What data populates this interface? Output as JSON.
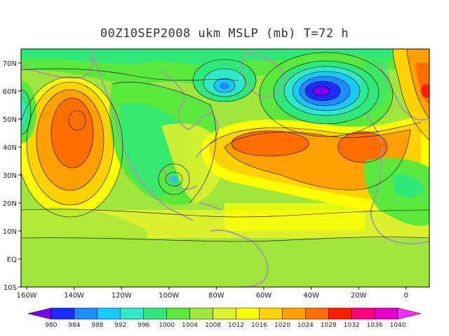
{
  "title": "00Z10SEP2008 ukm MSLP (mb) T=72 h",
  "lat_labels": [
    "70N",
    "60N",
    "50N",
    "40N",
    "30N",
    "20N",
    "10N",
    "EQ",
    "10S"
  ],
  "lon_labels": [
    "160W",
    "140W",
    "120W",
    "100W",
    "80W",
    "60W",
    "40W",
    "20W",
    "0"
  ],
  "colorbar": {
    "labels": [
      "980",
      "984",
      "988",
      "992",
      "996",
      "1000",
      "1004",
      "1008",
      "1012",
      "1016",
      "1020",
      "1024",
      "1028",
      "1032",
      "1036",
      "1040"
    ],
    "colors": [
      "#7a00e8",
      "#1e2dff",
      "#1e8cff",
      "#18c8ff",
      "#2ee8c8",
      "#2ee87a",
      "#5ae83c",
      "#a0e63c",
      "#dcf02e",
      "#ffff00",
      "#ffd200",
      "#ffa000",
      "#ff6e00",
      "#ff1e00",
      "#ff0080",
      "#e600c8",
      "#ff28ff"
    ]
  },
  "colors": {
    "land_outline": "#a0a0a0",
    "contour": "#000000",
    "background": "#ffffff"
  },
  "features": {
    "highs": [
      {
        "name": "north-pacific-high",
        "lon": -137,
        "lat": 42,
        "value": 1028
      },
      {
        "name": "azores-high-west",
        "lon": -50,
        "lat": 42,
        "value": 1028
      },
      {
        "name": "azores-high-east",
        "lon": -20,
        "lat": 40,
        "value": 1028
      },
      {
        "name": "european-high",
        "lon": 8,
        "lat": 62,
        "value": 1032
      }
    ],
    "lows": [
      {
        "name": "iceland-low",
        "lon": -34,
        "lat": 60,
        "value": 980
      },
      {
        "name": "baffin-low",
        "lon": -74,
        "lat": 62,
        "value": 996
      },
      {
        "name": "gulf-low",
        "lon": -94,
        "lat": 29,
        "value": 996
      },
      {
        "name": "pacific-nw-low",
        "lon": -160,
        "lat": 52,
        "value": 1000
      }
    ]
  }
}
